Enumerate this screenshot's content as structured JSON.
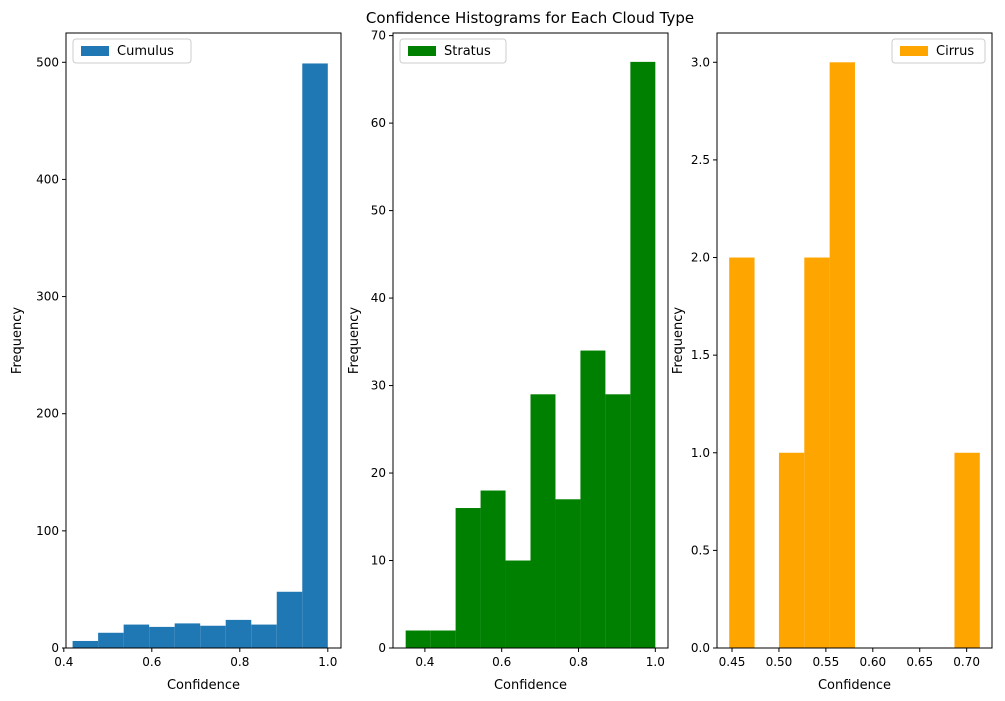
{
  "figure": {
    "title": "Confidence Histograms for Each Cloud Type"
  },
  "chart_data": [
    {
      "type": "bar",
      "name": "cumulus-histogram",
      "color": "#1f77b4",
      "legend_label": "Cumulus",
      "legend_position": "top-left",
      "xlabel": "Confidence",
      "ylabel": "Frequency",
      "xlim": [
        0.405,
        1.03
      ],
      "ylim": [
        0,
        525
      ],
      "xticks": [
        0.4,
        0.6,
        0.8,
        1.0
      ],
      "xtick_labels": [
        "0.4",
        "0.6",
        "0.8",
        "1.0"
      ],
      "yticks": [
        0,
        100,
        200,
        300,
        400,
        500
      ],
      "ytick_labels": [
        "0",
        "100",
        "200",
        "300",
        "400",
        "500"
      ],
      "bins": [
        {
          "x0": 0.42,
          "x1": 0.478,
          "value": 6
        },
        {
          "x0": 0.478,
          "x1": 0.536,
          "value": 13
        },
        {
          "x0": 0.536,
          "x1": 0.594,
          "value": 20
        },
        {
          "x0": 0.594,
          "x1": 0.652,
          "value": 18
        },
        {
          "x0": 0.652,
          "x1": 0.71,
          "value": 21
        },
        {
          "x0": 0.71,
          "x1": 0.768,
          "value": 19
        },
        {
          "x0": 0.768,
          "x1": 0.826,
          "value": 24
        },
        {
          "x0": 0.826,
          "x1": 0.884,
          "value": 20
        },
        {
          "x0": 0.884,
          "x1": 0.942,
          "value": 48
        },
        {
          "x0": 0.942,
          "x1": 1.0,
          "value": 499
        }
      ]
    },
    {
      "type": "bar",
      "name": "stratus-histogram",
      "color": "#008000",
      "legend_label": "Stratus",
      "legend_position": "top-left",
      "xlabel": "Confidence",
      "ylabel": "Frequency",
      "xlim": [
        0.317,
        1.033
      ],
      "ylim": [
        0,
        70.3
      ],
      "xticks": [
        0.4,
        0.6,
        0.8,
        1.0
      ],
      "xtick_labels": [
        "0.4",
        "0.6",
        "0.8",
        "1.0"
      ],
      "yticks": [
        0,
        10,
        20,
        30,
        40,
        50,
        60,
        70
      ],
      "ytick_labels": [
        "0",
        "10",
        "20",
        "30",
        "40",
        "50",
        "60",
        "70"
      ],
      "bins": [
        {
          "x0": 0.35,
          "x1": 0.415,
          "value": 2
        },
        {
          "x0": 0.415,
          "x1": 0.48,
          "value": 2
        },
        {
          "x0": 0.48,
          "x1": 0.545,
          "value": 16
        },
        {
          "x0": 0.545,
          "x1": 0.61,
          "value": 18
        },
        {
          "x0": 0.61,
          "x1": 0.675,
          "value": 10
        },
        {
          "x0": 0.675,
          "x1": 0.74,
          "value": 29
        },
        {
          "x0": 0.74,
          "x1": 0.805,
          "value": 17
        },
        {
          "x0": 0.805,
          "x1": 0.87,
          "value": 34
        },
        {
          "x0": 0.87,
          "x1": 0.935,
          "value": 29
        },
        {
          "x0": 0.935,
          "x1": 1.0,
          "value": 67
        }
      ]
    },
    {
      "type": "bar",
      "name": "cirrus-histogram",
      "color": "#ffa500",
      "legend_label": "Cirrus",
      "legend_position": "top-right",
      "xlabel": "Confidence",
      "ylabel": "Frequency",
      "xlim": [
        0.434,
        0.727
      ],
      "ylim": [
        0,
        3.15
      ],
      "xticks": [
        0.45,
        0.5,
        0.55,
        0.6,
        0.65,
        0.7
      ],
      "xtick_labels": [
        "0.45",
        "0.50",
        "0.55",
        "0.60",
        "0.65",
        "0.70"
      ],
      "yticks": [
        0,
        0.5,
        1.0,
        1.5,
        2.0,
        2.5,
        3.0
      ],
      "ytick_labels": [
        "0.0",
        "0.5",
        "1.0",
        "1.5",
        "2.0",
        "2.5",
        "3.0"
      ],
      "bins": [
        {
          "x0": 0.447,
          "x1": 0.474,
          "value": 2
        },
        {
          "x0": 0.474,
          "x1": 0.5,
          "value": 0
        },
        {
          "x0": 0.5,
          "x1": 0.527,
          "value": 1
        },
        {
          "x0": 0.527,
          "x1": 0.554,
          "value": 2
        },
        {
          "x0": 0.554,
          "x1": 0.581,
          "value": 3
        },
        {
          "x0": 0.581,
          "x1": 0.607,
          "value": 0
        },
        {
          "x0": 0.607,
          "x1": 0.634,
          "value": 0
        },
        {
          "x0": 0.634,
          "x1": 0.66,
          "value": 0
        },
        {
          "x0": 0.66,
          "x1": 0.687,
          "value": 0
        },
        {
          "x0": 0.687,
          "x1": 0.714,
          "value": 1
        }
      ]
    }
  ]
}
